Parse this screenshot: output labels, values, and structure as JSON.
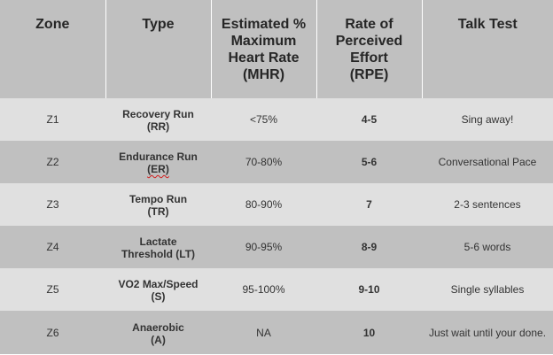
{
  "headers": {
    "zone": "Zone",
    "type": "Type",
    "mhr_line1": "Estimated %",
    "mhr_line2": "Maximum",
    "mhr_line3": "Heart Rate",
    "mhr_line4": "(MHR)",
    "rpe_line1": "Rate of",
    "rpe_line2": "Perceived",
    "rpe_line3": "Effort",
    "rpe_line4": "(RPE)",
    "talk": "Talk Test"
  },
  "rows": [
    {
      "zone": "Z1",
      "type_line1": "Recovery Run",
      "type_line2": "(RR)",
      "mhr": "<75%",
      "rpe": "4-5",
      "talk": "Sing away!"
    },
    {
      "zone": "Z2",
      "type_line1": "Endurance Run",
      "type_line2": "(ER)",
      "mhr": "70-80%",
      "rpe": "5-6",
      "talk": "Conversational Pace"
    },
    {
      "zone": "Z3",
      "type_line1": "Tempo Run",
      "type_line2": "(TR)",
      "mhr": "80-90%",
      "rpe": "7",
      "talk": "2-3 sentences"
    },
    {
      "zone": "Z4",
      "type_line1": "Lactate",
      "type_line2": "Threshold (LT)",
      "mhr": "90-95%",
      "rpe": "8-9",
      "talk": "5-6 words"
    },
    {
      "zone": "Z5",
      "type_line1": "VO2 Max/Speed",
      "type_line2": "(S)",
      "mhr": "95-100%",
      "rpe": "9-10",
      "talk": "Single syllables"
    },
    {
      "zone": "Z6",
      "type_line1": "Anaerobic",
      "type_line2": "(A)",
      "mhr": "NA",
      "rpe": "10",
      "talk": "Just wait until your done."
    }
  ]
}
